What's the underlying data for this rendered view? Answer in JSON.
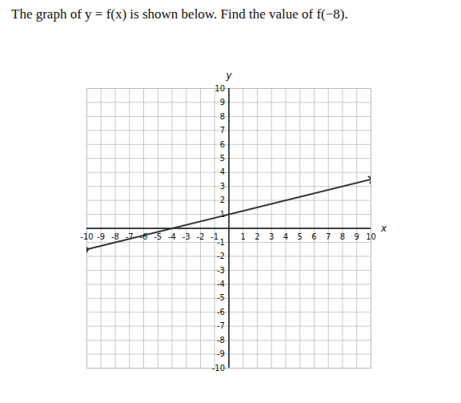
{
  "chart_data": {
    "type": "line",
    "title": "The graph of y = f(x) is shown below. Find the value of f(−8).",
    "x_label": "x",
    "y_label": "y",
    "x": [
      -10,
      10
    ],
    "values": [
      -1.5,
      3.5
    ],
    "xlim": [
      -10,
      10
    ],
    "ylim": [
      -10,
      10
    ],
    "xticks": [
      -10,
      -9,
      -8,
      -7,
      -6,
      -5,
      -4,
      -3,
      -2,
      -1,
      1,
      2,
      3,
      4,
      5,
      6,
      7,
      8,
      9,
      10
    ],
    "yticks": [
      -10,
      -9,
      -8,
      -7,
      -6,
      -5,
      -4,
      -3,
      -2,
      -1,
      1,
      2,
      3,
      4,
      5,
      6,
      7,
      8,
      9,
      10
    ],
    "grid": true,
    "color": "#333333",
    "marker": "arrow"
  }
}
